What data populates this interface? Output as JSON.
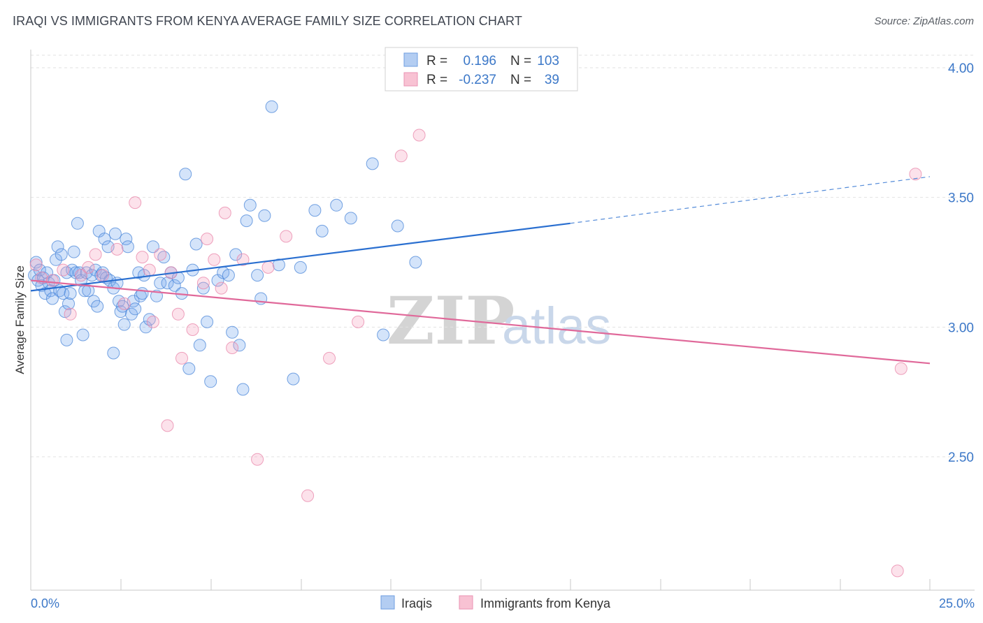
{
  "title": "IRAQI VS IMMIGRANTS FROM KENYA AVERAGE FAMILY SIZE CORRELATION CHART",
  "source": "Source: ZipAtlas.com",
  "watermark": {
    "zip": "ZIP",
    "atlas": "atlas"
  },
  "chart_data": {
    "type": "scatter",
    "title": "IRAQI VS IMMIGRANTS FROM KENYA AVERAGE FAMILY SIZE CORRELATION CHART",
    "xlabel": "",
    "ylabel": "Average Family Size",
    "xlim": [
      0,
      25
    ],
    "ylim": [
      2.05,
      4.1
    ],
    "x_tick_labels": {
      "left": "0.0%",
      "right": "25.0%"
    },
    "y_ticks": [
      {
        "value": 4.0,
        "label": "4.00"
      },
      {
        "value": 3.5,
        "label": "3.50"
      },
      {
        "value": 3.0,
        "label": "3.00"
      },
      {
        "value": 2.5,
        "label": "2.50"
      }
    ],
    "legend": {
      "rows": [
        {
          "r_label": "R =",
          "r_value": "0.196",
          "n_label": "N =",
          "n_value": "103"
        },
        {
          "r_label": "R =",
          "r_value": "-0.237",
          "n_label": "N =",
          "n_value": "39"
        }
      ]
    },
    "series": [
      {
        "name": "Iraqis",
        "color": "#7aaaf0",
        "stroke": "#4a86d8",
        "line_color": "#2a6fd0",
        "trend": {
          "x0": 0.0,
          "y0": 3.14,
          "x1": 15.0,
          "y1": 3.4,
          "dash_x1": 25.0,
          "dash_y1": 3.58
        },
        "points": [
          [
            0.1,
            3.2
          ],
          [
            0.15,
            3.25
          ],
          [
            0.2,
            3.18
          ],
          [
            0.25,
            3.22
          ],
          [
            0.3,
            3.16
          ],
          [
            0.35,
            3.19
          ],
          [
            0.4,
            3.13
          ],
          [
            0.45,
            3.21
          ],
          [
            0.5,
            3.17
          ],
          [
            0.55,
            3.14
          ],
          [
            0.6,
            3.11
          ],
          [
            0.65,
            3.18
          ],
          [
            0.7,
            3.26
          ],
          [
            0.75,
            3.31
          ],
          [
            0.8,
            3.14
          ],
          [
            0.85,
            3.28
          ],
          [
            0.9,
            3.13
          ],
          [
            0.95,
            3.06
          ],
          [
            1.0,
            3.21
          ],
          [
            1.05,
            3.09
          ],
          [
            1.1,
            3.13
          ],
          [
            1.15,
            3.22
          ],
          [
            1.2,
            3.29
          ],
          [
            1.25,
            3.21
          ],
          [
            1.3,
            3.4
          ],
          [
            1.35,
            3.21
          ],
          [
            1.4,
            3.18
          ],
          [
            1.45,
            2.97
          ],
          [
            1.5,
            3.14
          ],
          [
            1.55,
            3.21
          ],
          [
            1.6,
            3.14
          ],
          [
            1.7,
            3.2
          ],
          [
            1.75,
            3.1
          ],
          [
            1.8,
            3.22
          ],
          [
            1.85,
            3.08
          ],
          [
            1.9,
            3.37
          ],
          [
            1.95,
            3.2
          ],
          [
            2.0,
            3.21
          ],
          [
            2.05,
            3.34
          ],
          [
            2.1,
            3.19
          ],
          [
            2.15,
            3.31
          ],
          [
            2.2,
            3.18
          ],
          [
            2.3,
            3.15
          ],
          [
            2.35,
            3.36
          ],
          [
            2.4,
            3.17
          ],
          [
            2.45,
            3.1
          ],
          [
            2.5,
            3.06
          ],
          [
            2.55,
            3.08
          ],
          [
            2.6,
            3.01
          ],
          [
            2.65,
            3.34
          ],
          [
            2.7,
            3.31
          ],
          [
            2.8,
            3.05
          ],
          [
            2.85,
            3.1
          ],
          [
            2.9,
            3.07
          ],
          [
            3.0,
            3.21
          ],
          [
            3.05,
            3.12
          ],
          [
            3.1,
            3.13
          ],
          [
            3.15,
            3.2
          ],
          [
            3.2,
            3.0
          ],
          [
            3.3,
            3.03
          ],
          [
            3.4,
            3.31
          ],
          [
            3.5,
            3.12
          ],
          [
            3.6,
            3.17
          ],
          [
            3.7,
            3.27
          ],
          [
            3.8,
            3.17
          ],
          [
            3.9,
            3.21
          ],
          [
            4.0,
            3.16
          ],
          [
            4.1,
            3.19
          ],
          [
            4.2,
            3.13
          ],
          [
            4.3,
            3.59
          ],
          [
            4.4,
            2.84
          ],
          [
            4.5,
            3.22
          ],
          [
            4.6,
            3.32
          ],
          [
            4.7,
            2.93
          ],
          [
            4.8,
            3.15
          ],
          [
            4.9,
            3.02
          ],
          [
            5.0,
            2.79
          ],
          [
            5.2,
            3.18
          ],
          [
            5.35,
            3.21
          ],
          [
            5.5,
            3.2
          ],
          [
            5.6,
            2.98
          ],
          [
            5.7,
            3.28
          ],
          [
            5.8,
            2.93
          ],
          [
            5.9,
            2.76
          ],
          [
            6.0,
            3.41
          ],
          [
            6.1,
            3.47
          ],
          [
            6.3,
            3.2
          ],
          [
            6.4,
            3.11
          ],
          [
            6.5,
            3.43
          ],
          [
            6.7,
            3.85
          ],
          [
            6.9,
            3.24
          ],
          [
            7.3,
            2.8
          ],
          [
            7.5,
            3.23
          ],
          [
            7.9,
            3.45
          ],
          [
            8.1,
            3.37
          ],
          [
            8.5,
            3.47
          ],
          [
            8.9,
            3.42
          ],
          [
            9.5,
            3.63
          ],
          [
            9.8,
            2.97
          ],
          [
            10.2,
            3.39
          ],
          [
            10.7,
            3.25
          ],
          [
            1.0,
            2.95
          ],
          [
            2.3,
            2.9
          ]
        ]
      },
      {
        "name": "Immigrants from Kenya",
        "color": "#f5a6c0",
        "stroke": "#e884a8",
        "line_color": "#e0699a",
        "trend": {
          "x0": 0.0,
          "y0": 3.18,
          "x1": 25.0,
          "y1": 2.86
        },
        "points": [
          [
            0.15,
            3.24
          ],
          [
            0.3,
            3.19
          ],
          [
            0.6,
            3.18
          ],
          [
            0.9,
            3.22
          ],
          [
            1.1,
            3.05
          ],
          [
            1.4,
            3.2
          ],
          [
            1.6,
            3.23
          ],
          [
            1.8,
            3.28
          ],
          [
            2.0,
            3.2
          ],
          [
            2.4,
            3.3
          ],
          [
            2.6,
            3.09
          ],
          [
            2.9,
            3.48
          ],
          [
            3.1,
            3.27
          ],
          [
            3.3,
            3.22
          ],
          [
            3.6,
            3.28
          ],
          [
            3.9,
            3.21
          ],
          [
            4.1,
            3.05
          ],
          [
            4.5,
            2.99
          ],
          [
            4.8,
            3.17
          ],
          [
            5.3,
            3.15
          ],
          [
            5.6,
            2.92
          ],
          [
            5.9,
            3.26
          ],
          [
            6.3,
            2.49
          ],
          [
            6.6,
            3.23
          ],
          [
            7.1,
            3.35
          ],
          [
            3.4,
            3.02
          ],
          [
            3.8,
            2.62
          ],
          [
            4.9,
            3.34
          ],
          [
            4.2,
            2.88
          ],
          [
            5.4,
            3.44
          ],
          [
            5.1,
            3.26
          ],
          [
            7.7,
            2.35
          ],
          [
            8.3,
            2.88
          ],
          [
            9.1,
            3.02
          ],
          [
            10.3,
            3.66
          ],
          [
            10.8,
            3.74
          ],
          [
            24.1,
            2.06
          ],
          [
            24.2,
            2.84
          ],
          [
            24.6,
            3.59
          ]
        ]
      }
    ]
  }
}
